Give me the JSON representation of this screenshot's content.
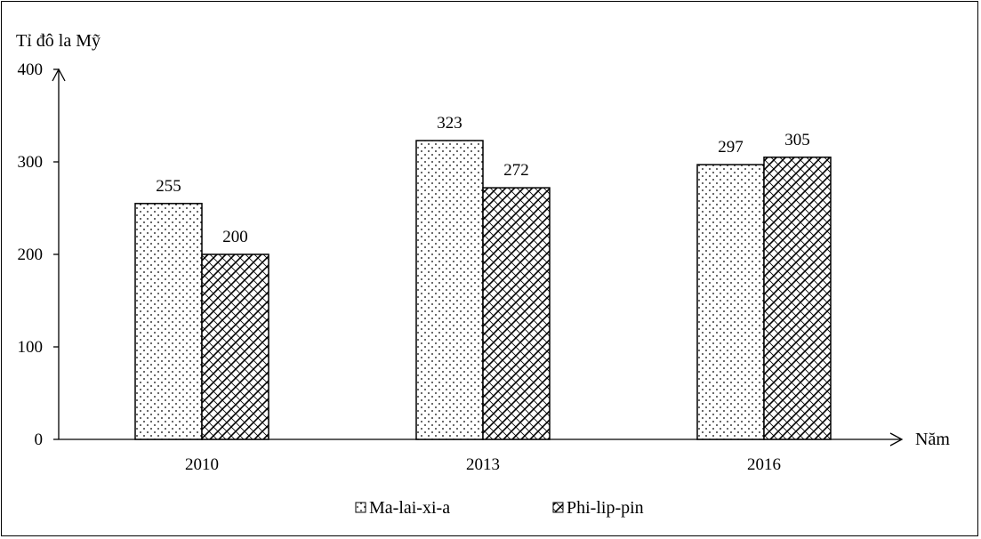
{
  "chart_data": {
    "type": "bar",
    "ylabel": "Tỉ đô la Mỹ",
    "xlabel": "Năm",
    "categories": [
      "2010",
      "2013",
      "2016"
    ],
    "ylim": [
      0,
      400
    ],
    "yticks": [
      0,
      100,
      200,
      300,
      400
    ],
    "series": [
      {
        "name": "Ma-lai-xi-a",
        "values": [
          255,
          323,
          297
        ],
        "pattern": "dots"
      },
      {
        "name": "Phi-lip-pin",
        "values": [
          200,
          272,
          305
        ],
        "pattern": "crosshatch"
      }
    ],
    "legend_position": "bottom-center",
    "grid": false
  }
}
